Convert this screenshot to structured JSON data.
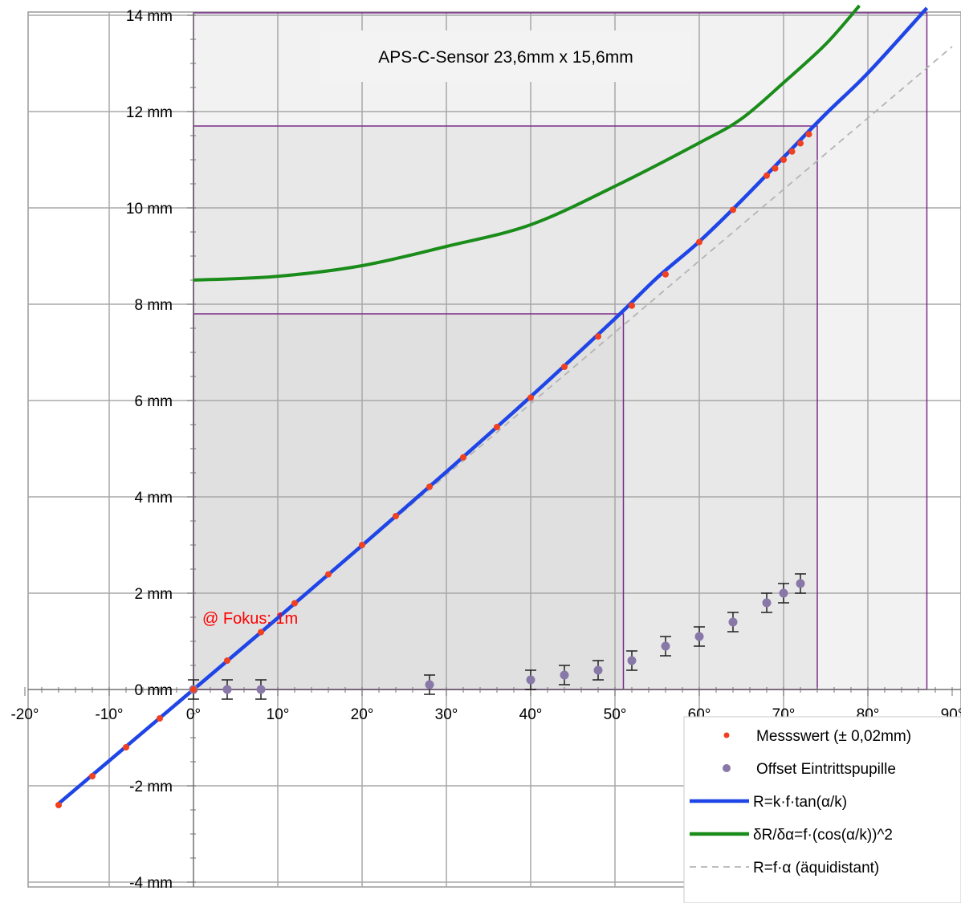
{
  "chart_data": {
    "type": "scatter",
    "title": "",
    "xlabel": "",
    "ylabel": "",
    "xlim": [
      -20,
      90
    ],
    "ylim": [
      -4,
      14
    ],
    "grid": true,
    "legend_position": "bottom-right",
    "x_ticks": [
      "-20°",
      "-10°",
      "0°",
      "10°",
      "20°",
      "30°",
      "40°",
      "50°",
      "60°",
      "70°",
      "80°",
      "90°"
    ],
    "y_ticks": [
      "-4 mm",
      "-2 mm",
      "0 mm",
      "2 mm",
      "4 mm",
      "6 mm",
      "8 mm",
      "10 mm",
      "12 mm",
      "14 mm"
    ],
    "sensor_label": "APS-C-Sensor 23,6mm x 15,6mm",
    "sensor_rects": [
      {
        "x_max": 87,
        "y_max": 14.05,
        "color": "#7b2a8a"
      },
      {
        "x_max": 74,
        "y_max": 11.7,
        "color": "#7b2a8a"
      },
      {
        "x_max": 51,
        "y_max": 7.8,
        "color": "#7b2a8a"
      }
    ],
    "annotation": {
      "text": "@ Fokus: 1m",
      "color": "#ff0000"
    },
    "series": [
      {
        "name": "Messswert (± 0,02mm)",
        "kind": "points",
        "color": "#f04020",
        "points": [
          [
            -16,
            -2.4
          ],
          [
            -12,
            -1.8
          ],
          [
            -8,
            -1.2
          ],
          [
            -4,
            -0.6
          ],
          [
            0,
            0
          ],
          [
            4,
            0.6
          ],
          [
            8,
            1.19
          ],
          [
            12,
            1.79
          ],
          [
            16,
            2.39
          ],
          [
            20,
            3.0
          ],
          [
            24,
            3.6
          ],
          [
            28,
            4.21
          ],
          [
            32,
            4.82
          ],
          [
            36,
            5.45
          ],
          [
            40,
            6.06
          ],
          [
            44,
            6.7
          ],
          [
            48,
            7.33
          ],
          [
            52,
            7.97
          ],
          [
            56,
            8.62
          ],
          [
            60,
            9.29
          ],
          [
            64,
            9.96
          ],
          [
            68,
            10.67
          ],
          [
            69,
            10.82
          ],
          [
            70,
            11.0
          ],
          [
            71,
            11.17
          ],
          [
            72,
            11.34
          ],
          [
            73,
            11.53
          ]
        ]
      },
      {
        "name": "Offset Eintrittspupille",
        "kind": "points_errorbars",
        "color": "#8878a8",
        "error": 0.2,
        "points": [
          [
            0,
            0
          ],
          [
            4,
            0
          ],
          [
            8,
            0
          ],
          [
            28,
            0.1
          ],
          [
            40,
            0.2
          ],
          [
            44,
            0.3
          ],
          [
            48,
            0.4
          ],
          [
            52,
            0.6
          ],
          [
            56,
            0.9
          ],
          [
            60,
            1.1
          ],
          [
            64,
            1.4
          ],
          [
            68,
            1.8
          ],
          [
            70,
            2.0
          ],
          [
            72,
            2.2
          ]
        ]
      },
      {
        "name": "R=k·f·tan(α/k)",
        "kind": "line",
        "color": "#1f45e6",
        "points": [
          [
            -16,
            -2.37
          ],
          [
            -10,
            -1.48
          ],
          [
            0,
            0
          ],
          [
            10,
            1.485
          ],
          [
            20,
            2.99
          ],
          [
            30,
            4.52
          ],
          [
            40,
            6.08
          ],
          [
            50,
            7.7
          ],
          [
            55,
            8.55
          ],
          [
            60,
            9.3
          ],
          [
            65,
            10.15
          ],
          [
            70,
            11.05
          ],
          [
            75,
            11.95
          ],
          [
            80,
            12.8
          ],
          [
            87,
            14.15
          ]
        ]
      },
      {
        "name": "δR/δα=f·(cos(α/k))^2",
        "kind": "line",
        "color": "#1a8c1a",
        "points": [
          [
            0,
            8.5
          ],
          [
            10,
            8.58
          ],
          [
            20,
            8.8
          ],
          [
            30,
            9.2
          ],
          [
            40,
            9.65
          ],
          [
            50,
            10.45
          ],
          [
            60,
            11.35
          ],
          [
            65,
            11.85
          ],
          [
            70,
            12.6
          ],
          [
            75,
            13.4
          ],
          [
            79,
            14.2
          ]
        ]
      },
      {
        "name": "R=f·α   (äquidistant)",
        "kind": "dashed",
        "color": "#b4b4b4",
        "points": [
          [
            -16,
            -2.37
          ],
          [
            90,
            13.35
          ]
        ]
      }
    ]
  }
}
